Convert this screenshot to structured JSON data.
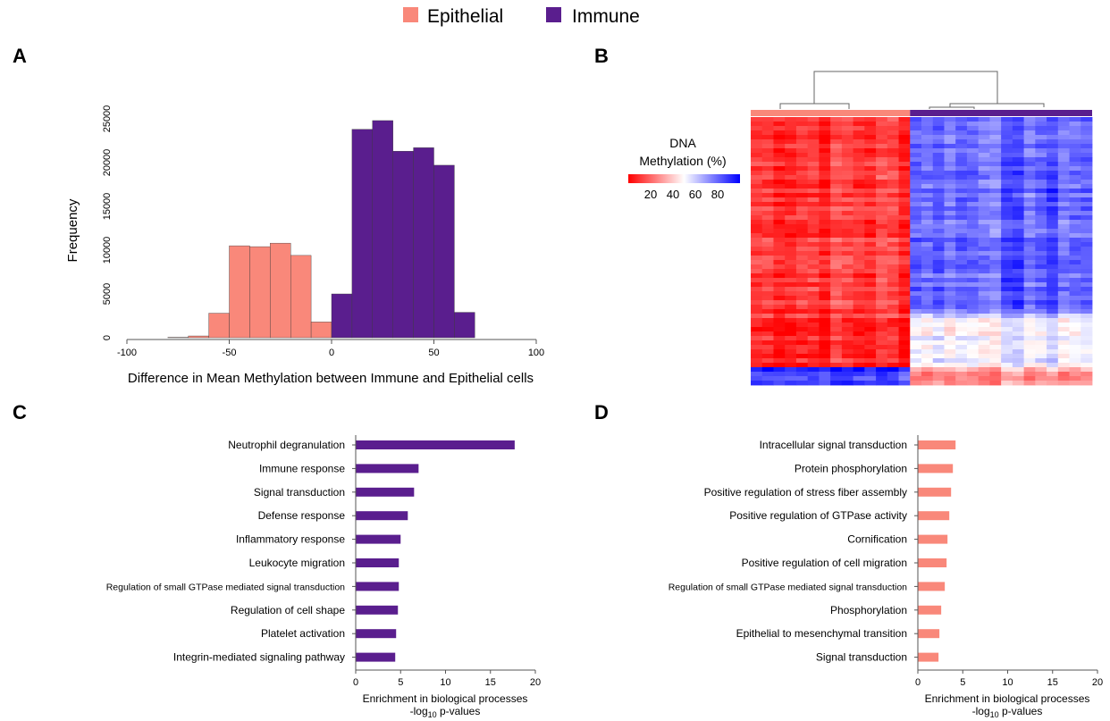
{
  "legend": {
    "items": [
      {
        "label": "Epithelial",
        "color": "#f9887a"
      },
      {
        "label": "Immune",
        "color": "#5a1e8e"
      }
    ]
  },
  "chart_data": [
    {
      "panel": "A",
      "type": "bar",
      "subtype": "histogram",
      "xlabel": "Difference in Mean Methylation between Immune and Epithelial cells",
      "ylabel": "Frequency",
      "xlim": [
        -100,
        100
      ],
      "ylim": [
        0,
        25000
      ],
      "xticks": [
        -100,
        -50,
        0,
        50,
        100
      ],
      "yticks": [
        0,
        5000,
        10000,
        15000,
        20000,
        25000
      ],
      "bin_width": 10,
      "bins": [
        {
          "start": -80,
          "end": -70,
          "value": 50,
          "group": "Epithelial"
        },
        {
          "start": -70,
          "end": -60,
          "value": 200,
          "group": "Epithelial"
        },
        {
          "start": -60,
          "end": -50,
          "value": 2800,
          "group": "Epithelial"
        },
        {
          "start": -50,
          "end": -40,
          "value": 10500,
          "group": "Epithelial"
        },
        {
          "start": -40,
          "end": -30,
          "value": 10400,
          "group": "Epithelial"
        },
        {
          "start": -30,
          "end": -20,
          "value": 10800,
          "group": "Epithelial"
        },
        {
          "start": -20,
          "end": -10,
          "value": 9400,
          "group": "Epithelial"
        },
        {
          "start": -10,
          "end": 0,
          "value": 1800,
          "group": "Epithelial"
        },
        {
          "start": 0,
          "end": 10,
          "value": 5000,
          "group": "Immune"
        },
        {
          "start": 10,
          "end": 20,
          "value": 23800,
          "group": "Immune"
        },
        {
          "start": 20,
          "end": 30,
          "value": 24800,
          "group": "Immune"
        },
        {
          "start": 30,
          "end": 40,
          "value": 21300,
          "group": "Immune"
        },
        {
          "start": 40,
          "end": 50,
          "value": 21700,
          "group": "Immune"
        },
        {
          "start": 50,
          "end": 60,
          "value": 19700,
          "group": "Immune"
        },
        {
          "start": 60,
          "end": 70,
          "value": 2900,
          "group": "Immune"
        }
      ]
    },
    {
      "panel": "B",
      "type": "heatmap",
      "colorbar": {
        "title_line1": "DNA",
        "title_line2": "Methylation (%)",
        "ticks": [
          20,
          40,
          60,
          80
        ],
        "low_color": "#ff0000",
        "mid_color": "#ffffff",
        "high_color": "#0000ff"
      },
      "column_groups": [
        {
          "group": "Epithelial",
          "columns": 14
        },
        {
          "group": "Immune",
          "columns": 16
        }
      ],
      "row_blocks": [
        {
          "fraction": 0.74,
          "Epithelial": 12,
          "Immune": 80
        },
        {
          "fraction": 0.2,
          "Epithelial": 10,
          "Immune": 55
        },
        {
          "fraction": 0.06,
          "Epithelial": 90,
          "Immune": 30
        }
      ]
    },
    {
      "panel": "C",
      "type": "bar",
      "orientation": "horizontal",
      "xlabel_line1": "Enrichment in biological processes",
      "xlabel_line2_prefix": "-log",
      "xlabel_line2_sub": "10",
      "xlabel_line2_suffix": " p-values",
      "xlim": [
        0,
        20
      ],
      "xticks": [
        0,
        5,
        10,
        15,
        20
      ],
      "color": "#5a1e8e",
      "categories": [
        "Neutrophil degranulation",
        "Immune response",
        "Signal transduction",
        "Defense response",
        "Inflammatory response",
        "Leukocyte migration",
        "Regulation of small GTPase mediated signal transduction",
        "Regulation of cell shape",
        "Platelet activation",
        "Integrin-mediated signaling pathway"
      ],
      "values": [
        17.7,
        7.0,
        6.5,
        5.8,
        5.0,
        4.8,
        4.8,
        4.7,
        4.5,
        4.4
      ]
    },
    {
      "panel": "D",
      "type": "bar",
      "orientation": "horizontal",
      "xlabel_line1": "Enrichment in biological processes",
      "xlabel_line2_prefix": "-log",
      "xlabel_line2_sub": "10",
      "xlabel_line2_suffix": " p-values",
      "xlim": [
        0,
        20
      ],
      "xticks": [
        0,
        5,
        10,
        15,
        20
      ],
      "color": "#f9887a",
      "categories": [
        "Intracellular signal transduction",
        "Protein phosphorylation",
        "Positive regulation of stress fiber assembly",
        "Positive regulation of GTPase activity",
        "Cornification",
        "Positive regulation of cell migration",
        "Regulation of small GTPase mediated signal transduction",
        "Phosphorylation",
        "Epithelial to mesenchymal transition",
        "Signal transduction"
      ],
      "values": [
        4.2,
        3.9,
        3.7,
        3.5,
        3.3,
        3.2,
        3.0,
        2.6,
        2.4,
        2.3
      ]
    }
  ]
}
